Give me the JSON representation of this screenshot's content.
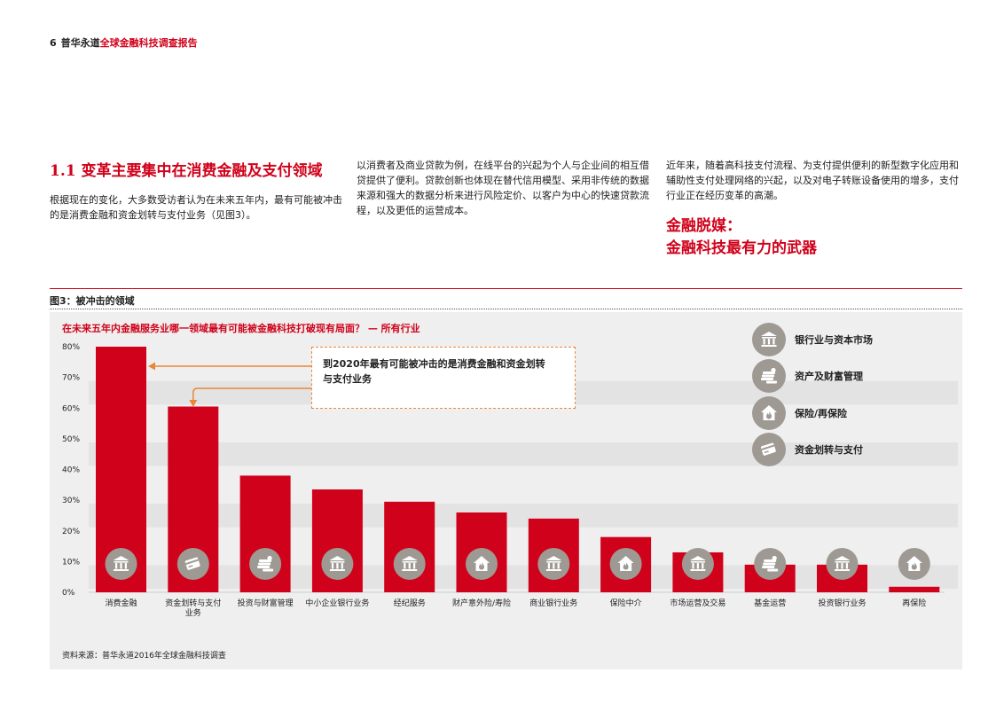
{
  "header": {
    "page_number": "6",
    "publisher": "普华永道",
    "document_title": "全球金融科技调查报告"
  },
  "section": {
    "title": "1.1 变革主要集中在消费金融及支付领域",
    "col1": "根据现在的变化，大多数受访者认为在未来五年内，最有可能被冲击的是消费金融和资金划转与支付业务（见图3）。",
    "col2": "以消费者及商业贷款为例，在线平台的兴起为个人与企业间的相互借贷提供了便利。贷款创新也体现在替代信用模型、采用非传统的数据来源和强大的数据分析来进行风险定价、以客户为中心的快速贷款流程，以及更低的运营成本。",
    "col3": "近年来，随着高科技支付流程、为支付提供便利的新型数字化应用和辅助性支付处理网络的兴起，以及对电子转账设备使用的增多，支付行业正在经历变革的高潮。",
    "highlight_line1": "金融脱媒：",
    "highlight_line2": "金融科技最有力的武器"
  },
  "figure": {
    "title": "图3：被冲击的领域",
    "source": "资料来源：普华永道2016年全球金融科技调查"
  },
  "chart_data": {
    "type": "bar",
    "title": "在未来五年内金融服务业哪一领域最有可能被金融科技打破现有局面？ — 所有行业",
    "categories": [
      "消费金融",
      "资金划转与支付业务",
      "投资与财富管理",
      "中小企业银行业务",
      "经纪服务",
      "财产意外险/寿险",
      "商业银行业务",
      "保险中介",
      "市场运营及交易",
      "基金运营",
      "投资银行业务",
      "再保险"
    ],
    "category_lines": [
      [
        "消费金融"
      ],
      [
        "资金划转与支付",
        "业务"
      ],
      [
        "投资与财富管理"
      ],
      [
        "中小企业银行业务"
      ],
      [
        "经纪服务"
      ],
      [
        "财产意外险/寿险"
      ],
      [
        "商业银行业务"
      ],
      [
        "保险中介"
      ],
      [
        "市场运营及交易"
      ],
      [
        "基金运营"
      ],
      [
        "投资银行业务"
      ],
      [
        "再保险"
      ]
    ],
    "values": [
      80,
      60.5,
      38,
      33.5,
      29.5,
      26,
      24,
      18,
      13,
      9,
      9,
      1.8
    ],
    "icons": [
      "bank",
      "card",
      "coins",
      "bank",
      "bank",
      "house",
      "bank",
      "house",
      "bank",
      "coins",
      "bank",
      "house"
    ],
    "ylim": [
      0,
      80
    ],
    "yticks": [
      0,
      10,
      20,
      30,
      40,
      50,
      60,
      70,
      80
    ],
    "tick_suffix": "%",
    "bar_color": "#d0021b",
    "annotation": "到2020年最有可能被冲击的是消费金融和资金划转与支付业务",
    "annotation_lines": [
      "到2020年最有可能被冲击的是消费金融和资金划转",
      "与支付业务"
    ]
  },
  "legend": [
    {
      "icon": "bank",
      "label": "银行业与资本市场"
    },
    {
      "icon": "coins",
      "label": "资产及财富管理"
    },
    {
      "icon": "house",
      "label": "保险/再保险"
    },
    {
      "icon": "card",
      "label": "资金划转与支付"
    }
  ],
  "colors": {
    "accent": "#d0021b",
    "icon_circle": "#9e9a93",
    "callout_border": "#e8873a"
  }
}
